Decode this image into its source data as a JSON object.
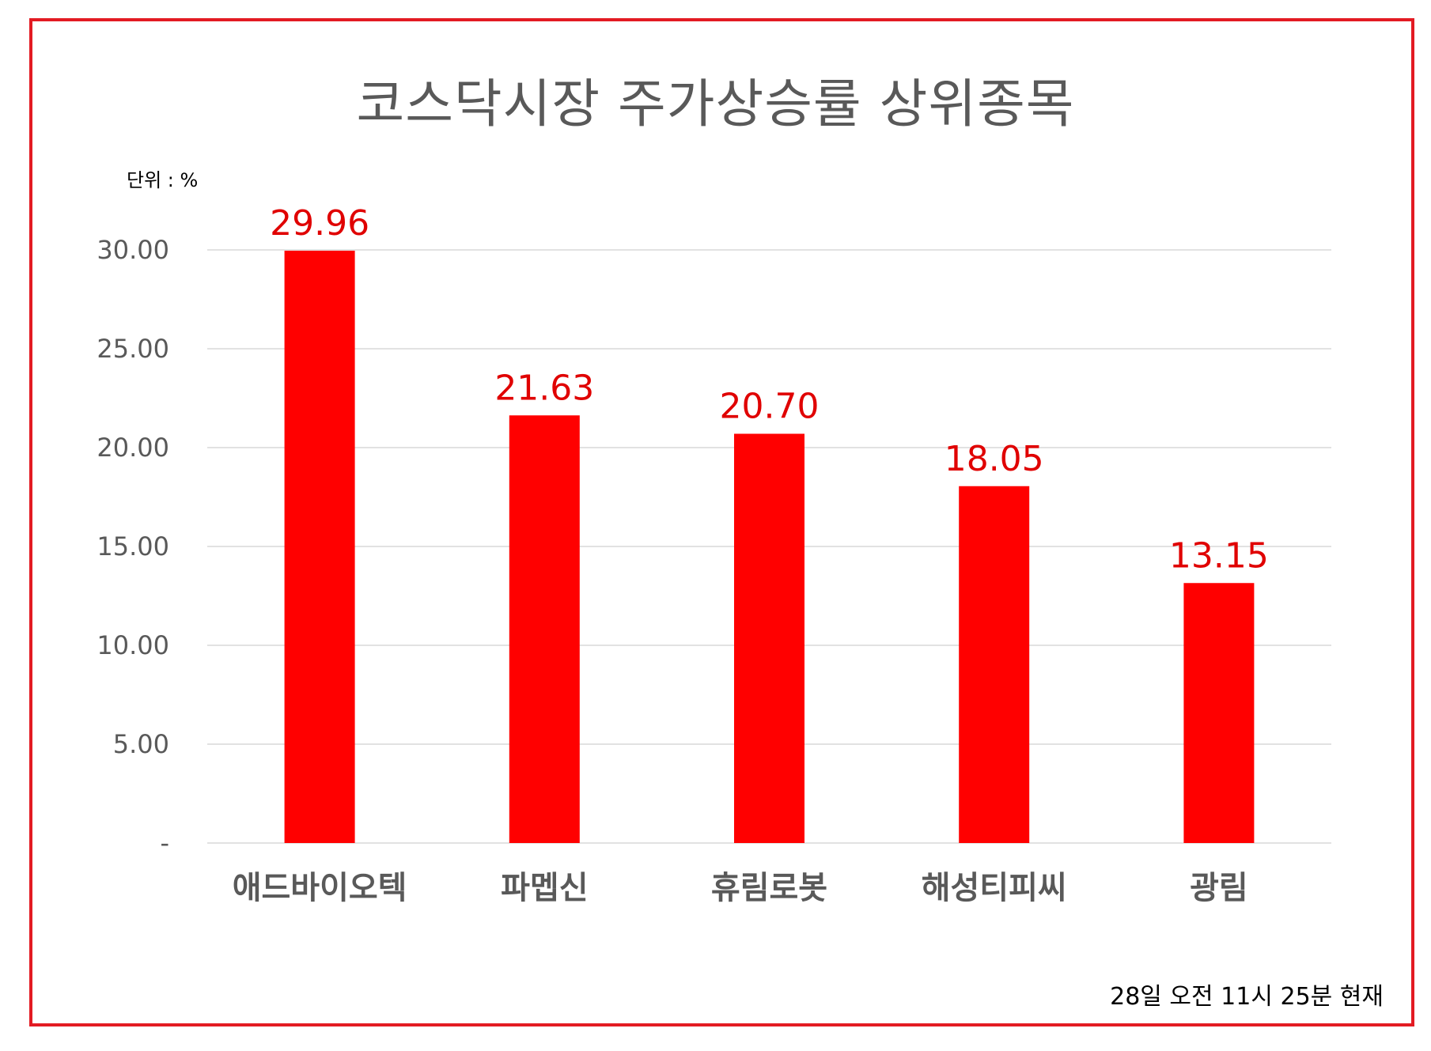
{
  "chart_data": {
    "type": "bar",
    "title": "코스닥시장 주가상승률 상위종목",
    "unit_label": "단위 : %",
    "footnote": "28일  오전 11시 25분 현재",
    "categories": [
      "애드바이오텍",
      "파멥신",
      "휴림로봇",
      "해성티피씨",
      "광림"
    ],
    "values": [
      29.96,
      21.63,
      20.7,
      18.05,
      13.15
    ],
    "value_labels": [
      "29.96",
      "21.63",
      "20.70",
      "18.05",
      "13.15"
    ],
    "ylim": [
      0,
      30
    ],
    "yticks": [
      0,
      5,
      10,
      15,
      20,
      25,
      30
    ],
    "ytick_labels": [
      "-",
      "5.00",
      "10.00",
      "15.00",
      "20.00",
      "25.00",
      "30.00"
    ],
    "grid": true,
    "colors": {
      "bar": "#ff0000",
      "data_label": "#e00000",
      "border": "#e31b23",
      "grid": "#d9d9d9",
      "text": "#595959"
    }
  }
}
